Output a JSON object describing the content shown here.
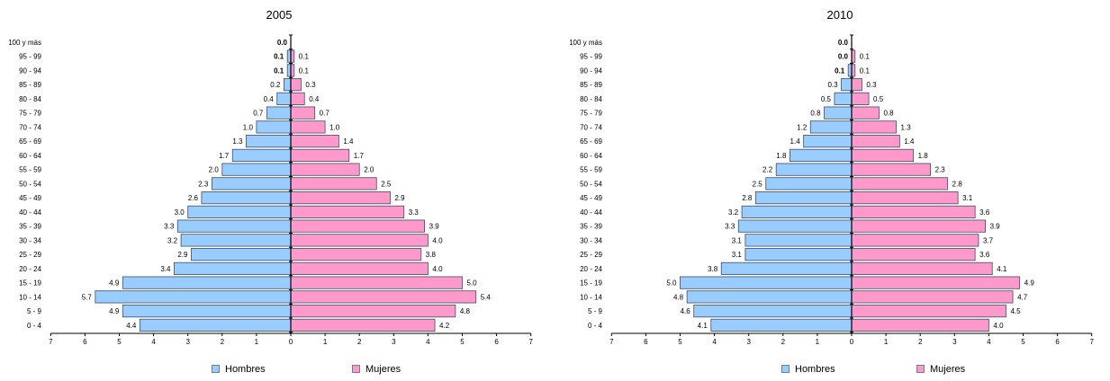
{
  "colors": {
    "hombres": "#99ccff",
    "mujeres": "#ff99cc",
    "bar_stroke": "#3b4d68"
  },
  "chart_data": [
    {
      "type": "bar",
      "orientation": "horizontal-population-pyramid",
      "title": "2005",
      "categories": [
        "0 - 4",
        "5 - 9",
        "10 - 14",
        "15 - 19",
        "20 - 24",
        "25 - 29",
        "30 - 34",
        "35 - 39",
        "40 - 44",
        "45 - 49",
        "50 - 54",
        "55 - 59",
        "60 - 64",
        "65 - 69",
        "70 - 74",
        "75 - 79",
        "80 - 84",
        "85 - 89",
        "90 - 94",
        "95 - 99",
        "100 y más"
      ],
      "series": [
        {
          "name": "Hombres",
          "values": [
            4.4,
            4.9,
            5.7,
            4.9,
            3.4,
            2.9,
            3.2,
            3.3,
            3.0,
            2.6,
            2.3,
            2.0,
            1.7,
            1.3,
            1.0,
            0.7,
            0.4,
            0.2,
            0.1,
            0.1,
            0.0
          ],
          "labels": [
            "4.4",
            "4.9",
            "5.7",
            "4.9",
            "3.4",
            "2.9",
            "3.2",
            "3.3",
            "3.0",
            "2.6",
            "2.3",
            "2.0",
            "1.7",
            "1.3",
            "1.0",
            "0.7",
            "0.4",
            "0.2",
            "0.1",
            "0.1",
            "0.0"
          ]
        },
        {
          "name": "Mujeres",
          "values": [
            4.2,
            4.8,
            5.4,
            5.0,
            4.0,
            3.8,
            4.0,
            3.9,
            3.3,
            2.9,
            2.5,
            2.0,
            1.7,
            1.4,
            1.0,
            0.7,
            0.4,
            0.3,
            0.1,
            0.1,
            0.0
          ],
          "labels": [
            "4.2",
            "4.8",
            "5.4",
            "5.0",
            "4.0",
            "3.8",
            "4.0",
            "3.9",
            "3.3",
            "2.9",
            "2.5",
            "2.0",
            "1.7",
            "1.4",
            "1.0",
            "0.7",
            "0.4",
            "0.3",
            "0.1",
            "0.1",
            "0.0"
          ]
        }
      ],
      "xlim": [
        0,
        7
      ],
      "xticks": [
        "7",
        "6",
        "5",
        "4",
        "3",
        "2",
        "1",
        "0",
        "1",
        "2",
        "3",
        "4",
        "5",
        "6",
        "7"
      ],
      "legend": "bottom"
    },
    {
      "type": "bar",
      "orientation": "horizontal-population-pyramid",
      "title": "2010",
      "categories": [
        "0 - 4",
        "5 - 9",
        "10 - 14",
        "15 - 19",
        "20 - 24",
        "25 - 29",
        "30 - 34",
        "35 - 39",
        "40 - 44",
        "45 - 49",
        "50 - 54",
        "55 - 59",
        "60 - 64",
        "65 - 69",
        "70 - 74",
        "75 - 79",
        "80 - 84",
        "85 - 89",
        "90 - 94",
        "95 - 99",
        "100 y más"
      ],
      "series": [
        {
          "name": "Hombres",
          "values": [
            4.1,
            4.6,
            4.8,
            5.0,
            3.8,
            3.1,
            3.1,
            3.3,
            3.2,
            2.8,
            2.5,
            2.2,
            1.8,
            1.4,
            1.2,
            0.8,
            0.5,
            0.3,
            0.1,
            0.0,
            0.0
          ],
          "labels": [
            "4.1",
            "4.6",
            "4.8",
            "5.0",
            "3.8",
            "3.1",
            "3.1",
            "3.3",
            "3.2",
            "2.8",
            "2.5",
            "2.2",
            "1.8",
            "1.4",
            "1.2",
            "0.8",
            "0.5",
            "0.3",
            "0.1",
            "0.0",
            "0.0"
          ]
        },
        {
          "name": "Mujeres",
          "values": [
            4.0,
            4.5,
            4.7,
            4.9,
            4.1,
            3.6,
            3.7,
            3.9,
            3.6,
            3.1,
            2.8,
            2.3,
            1.8,
            1.4,
            1.3,
            0.8,
            0.5,
            0.3,
            0.1,
            0.1,
            0.0
          ],
          "labels": [
            "4.0",
            "4.5",
            "4.7",
            "4.9",
            "4.1",
            "3.6",
            "3.7",
            "3.9",
            "3.6",
            "3.1",
            "2.8",
            "2.3",
            "1.8",
            "1.4",
            "1.3",
            "0.8",
            "0.5",
            "0.3",
            "0.1",
            "0.1",
            "0.0"
          ]
        }
      ],
      "xlim": [
        0,
        7
      ],
      "xticks": [
        "7",
        "6",
        "5",
        "4",
        "3",
        "2",
        "1",
        "0",
        "1",
        "2",
        "3",
        "4",
        "5",
        "6",
        "7"
      ],
      "legend": "bottom"
    }
  ],
  "legend": {
    "hombres": "Hombres",
    "mujeres": "Mujeres"
  }
}
